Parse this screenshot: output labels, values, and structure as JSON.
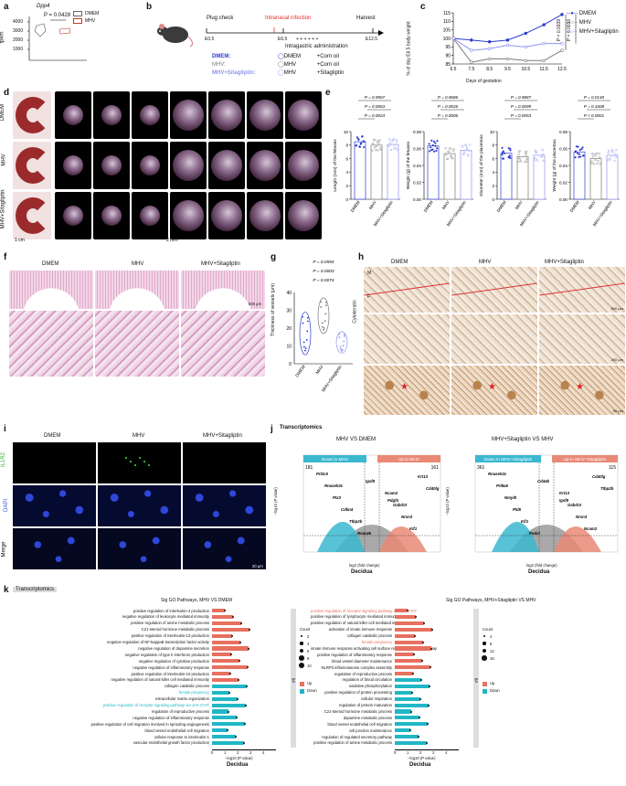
{
  "panel_a": {
    "letter": "a",
    "gene": "Dpp4",
    "p": "P = 0.0428",
    "ylabel": "fpkm",
    "yticks": [
      "4000",
      "3000",
      "2000",
      "1000"
    ],
    "legend": [
      "DMEM",
      "MHV"
    ]
  },
  "panel_b": {
    "letter": "b",
    "plug": "Plug check",
    "infection": "Intranasal infection",
    "harvest": "Harvest",
    "e0": "E0.5",
    "e6": "E6.5",
    "e12": "E12.5",
    "admin": "Intragastric administration",
    "plus": "+  +  +  +  +  +",
    "rows": [
      {
        "group": "DMEM:",
        "a": "DMEM",
        "b": "+Corn oil"
      },
      {
        "group": "MHV:",
        "a": "MHV",
        "b": "+Corn oil"
      },
      {
        "group": "MHV+Sitagliptin:",
        "a": "MHV",
        "b": "+Sitagliptin"
      }
    ],
    "colors": {
      "dmem": "#2b3bd1",
      "mhv": "#7a7a7a",
      "sita": "#8f93f0"
    }
  },
  "panel_c": {
    "letter": "c",
    "ylabel": "% of day E6.5 body weight",
    "xlabel": "Days of gestation",
    "legend": [
      "DMEM",
      "MHV",
      "MHV+Sitagliptin"
    ],
    "p1": "P = 0.0339",
    "p2": "P = 0.0016"
  },
  "chart_data": [
    {
      "type": "line",
      "title": "",
      "xlabel": "Days of gestation",
      "ylabel": "% of day E6.5 body weight",
      "x": [
        6.5,
        7.5,
        8.5,
        9.5,
        10.5,
        11.5,
        12.5
      ],
      "ylim": [
        85,
        115
      ],
      "yticks": [
        85,
        90,
        95,
        100,
        105,
        110,
        115
      ],
      "series": [
        {
          "name": "DMEM",
          "values": [
            100,
            99,
            98,
            99,
            103,
            108,
            114
          ]
        },
        {
          "name": "MHV",
          "values": [
            100,
            86,
            88,
            88,
            87,
            87,
            93
          ]
        },
        {
          "name": "MHV+Sitagliptin",
          "values": [
            100,
            93,
            94,
            96,
            95,
            97,
            97
          ]
        }
      ]
    }
  ],
  "panel_d": {
    "letter": "d",
    "rows": [
      "DMEM",
      "MHV",
      "MHV+Sitagliptin"
    ],
    "scale1": "1 cm",
    "scale2": "2 mm"
  },
  "panel_e": {
    "letter": "e",
    "plots": [
      {
        "ylabel": "Length (mm) of the fetuses",
        "yticks": [
          "10",
          "8",
          "6",
          "4",
          "2",
          "0"
        ],
        "p": [
          "P = 0.9967",
          "P = 0.0063",
          "P = 0.0024"
        ]
      },
      {
        "ylabel": "Weight (g) of the fetuses",
        "yticks": [
          "0.08",
          "0.06",
          "0.04",
          "0.02",
          "0.00"
        ],
        "p": [
          "P = 0.9686",
          "P = 0.0026",
          "P = 0.0006"
        ]
      },
      {
        "ylabel": "Diameter (mm) of the placentas",
        "yticks": [
          "10",
          "8",
          "6",
          "4",
          "2",
          "0"
        ],
        "p": [
          "P = 0.9887",
          "P = 0.0099",
          "P = 0.0053"
        ]
      },
      {
        "ylabel": "Weight (g) of the placentas",
        "yticks": [
          "0.08",
          "0.06",
          "0.04",
          "0.02",
          "0.00"
        ],
        "p": [
          "P = 0.0140",
          "P = 0.1608",
          "P < 0.0001"
        ]
      }
    ],
    "xcats": [
      "DMEM",
      "MHV",
      "MHV+Sitagliptin"
    ]
  },
  "panel_f": {
    "letter": "f",
    "cols": [
      "DMEM",
      "MHV",
      "MHV+Sitagliptin"
    ],
    "scale": "500 μm"
  },
  "panel_g": {
    "letter": "g",
    "ylabel": "Thickness of vessels (μm)",
    "yticks": [
      "40",
      "30",
      "20",
      "10",
      "0"
    ],
    "p": [
      "P = 0.0594",
      "P = 0.0003",
      "P = 0.0074"
    ],
    "xcats": [
      "DMEM",
      "MHV",
      "MHV+Sitagliptin"
    ]
  },
  "panel_h": {
    "letter": "h",
    "cols": [
      "DMEM",
      "MHV",
      "MHV+Sitagliptin"
    ],
    "side": "Cytokeratin",
    "m": "M",
    "f": "F",
    "scales": [
      "500 μm",
      "200 μm",
      "50 μm"
    ]
  },
  "panel_i": {
    "letter": "i",
    "cols": [
      "DMEM",
      "MHV",
      "MHV+Sitagliptin"
    ],
    "rows": [
      "IL1R2",
      "DAPI",
      "Merge"
    ],
    "scale": "20 μm"
  },
  "panel_j": {
    "letter": "j",
    "title": "Transcriptomics",
    "xlabel": "Decidua",
    "left": {
      "title": "MHV VS DMEM",
      "down": "Down in MHV",
      "up": "Up in MHV",
      "ndown": "181",
      "nup": "161",
      "genes": [
        "Prl2c5",
        "Rnaseh2c",
        "Ptx3",
        "Cdkn4",
        "Ttbp2b",
        "Rnasek",
        "Igsf8",
        "Ncam2",
        "Gabrb3",
        "Nrxn3",
        "Kif1",
        "Krt13",
        "Cd40lg",
        "Pdgf4"
      ]
    },
    "right": {
      "title": "MHV+Sitagliptin VS MHV",
      "down": "Down in MHV+Sitagliptin",
      "up": "Up in MHV+Sitagliptin",
      "ndown": "361",
      "nup": "115",
      "genes": [
        "Rnaseh2c",
        "Prl8a5",
        "Nmyl8",
        "Pld5",
        "Kif1",
        "Podxl",
        "Cd44b",
        "Krt13",
        "Gabrb3",
        "Nrxn3",
        "Ncam2",
        "Cd40lg",
        "Ttbp2b",
        "Igsf8"
      ]
    },
    "axis_x": "log2 (fold change)",
    "axis_y": "−log10 (P value)"
  },
  "panel_k": {
    "letter": "k",
    "title": "Transcriptomics",
    "left": {
      "title": "Sig GO Pathways, MHV VS DMEM",
      "xlabel": "Decidua",
      "axis": "−log10 (P value)",
      "count_title": "Count",
      "counts": [
        "2",
        "4",
        "6",
        "8",
        "10"
      ],
      "legend": [
        "Up",
        "Down"
      ],
      "bp": "BP",
      "up": [
        "positive regulation of interleukin-4 production",
        "negative regulation of leukocyte mediated immunity",
        "positive regulation of amine metabolic process",
        "C21-steroid hormone metabolic process",
        "positive regulation of interleukin-13 production",
        "negative regulation of NF-kappaB transcription factor activity",
        "negative regulation of dopamine secretion",
        "negative regulation of type II interferon production",
        "negative regulation of cytokine production",
        "negative regulation of inflammatory response",
        "positive regulation of interleukin-10 production",
        "negative regulation of natural killer cell mediated immunity"
      ],
      "down": [
        "collagen catabolic process",
        "female pregnancy",
        "extracellular matrix organization",
        "positive regulation of receptor signaling pathway via JAK-STAT",
        "regulation of reproductive process",
        "negative regulation of inflammatory response",
        "positive regulation of cell migration involved in sprouting angiogenesis",
        "blood vessel endothelial cell migration",
        "cellular response to interleukin-1",
        "vascular endothelial growth factor production"
      ]
    },
    "right": {
      "title": "Sig GO Pathways, MHV+Sitagliptin VS MHV",
      "xlabel": "Decidua",
      "axis": "−log10 (P value)",
      "count_title": "Count",
      "counts": [
        "4",
        "8",
        "12",
        "16"
      ],
      "legend": [
        "Up",
        "Down"
      ],
      "bp": "BP",
      "up": [
        "positive regulation of receptor signaling pathway via JAK-STAT",
        "positive regulation of lymphocyte mediated immunity",
        "positive regulation of natural killer cell mediated immunity",
        "activation of innate immune response",
        "collagen catabolic process",
        "female pregnancy",
        "innate immune response activating cell surface receptor signaling pathway",
        "positive regulation of inflammatory response",
        "blood vessel diameter maintenance",
        "NLRP3 inflammasome complex assembly",
        "regulation of reproductive process"
      ],
      "down": [
        "regulation of blood circulation",
        "oxidative phosphorylation",
        "positive regulation of protein processing",
        "cellular respiration",
        "regulation of protein maturation",
        "C21-steroid hormone metabolic process",
        "dopamine metabolic process",
        "blood vessel endothelial cell migration",
        "cell junction maintenance",
        "regulation of regulated secretory pathway",
        "positive regulation of amine metabolic process"
      ]
    }
  }
}
